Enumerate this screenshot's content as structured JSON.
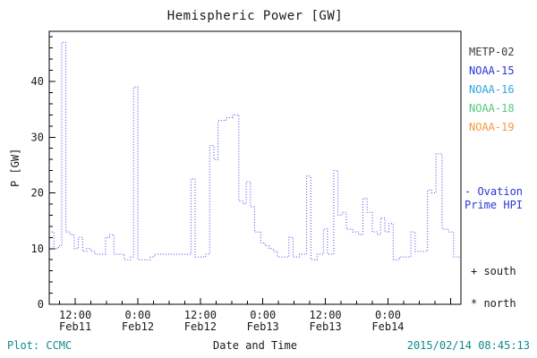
{
  "title": "Hemispheric Power [GW]",
  "legend": {
    "satellites": [
      {
        "label": "METP-02",
        "color": "#3a3a3a"
      },
      {
        "label": "NOAA-15",
        "color": "#2a35d8"
      },
      {
        "label": "NOAA-16",
        "color": "#2aa8e0"
      },
      {
        "label": "NOAA-18",
        "color": "#57c87d"
      },
      {
        "label": "NOAA-19",
        "color": "#f59b3c"
      }
    ],
    "ovation_line1": "- Ovation",
    "ovation_line2": "Prime HPI",
    "ovation_color": "#2a35d8",
    "south": "+ south",
    "north": "* north"
  },
  "footer": {
    "plot_credit": "Plot: CCMC",
    "timestamp": "2015/02/14 08:45:13",
    "footer_color": "#0e8a8a"
  },
  "chart_data": {
    "type": "line",
    "subtype": "step-dotted",
    "title": "Hemispheric Power [GW]",
    "xlabel": "Date and Time",
    "ylabel": "P [GW]",
    "legend_position": "right",
    "grid": false,
    "line_color": "#4545e8",
    "ylim": [
      0,
      49
    ],
    "xlim_hours_since_feb11_0000": [
      7,
      86
    ],
    "y_major_ticks": [
      0,
      10,
      20,
      30,
      40
    ],
    "y_minor_step": 2,
    "x_minor_step_hours": 3,
    "x_ticks": [
      {
        "hour": 12,
        "time": "12:00",
        "date": "Feb11"
      },
      {
        "hour": 24,
        "time": "0:00",
        "date": "Feb12"
      },
      {
        "hour": 36,
        "time": "12:00",
        "date": "Feb12"
      },
      {
        "hour": 48,
        "time": "0:00",
        "date": "Feb13"
      },
      {
        "hour": 60,
        "time": "12:00",
        "date": "Feb13"
      },
      {
        "hour": 72,
        "time": "0:00",
        "date": "Feb14"
      },
      {
        "hour": 84,
        "time": "",
        "date": ""
      }
    ],
    "series": [
      {
        "name": "Ovation Prime HPI",
        "hours": [
          7.0,
          7.9,
          8.8,
          9.4,
          10.2,
          11.0,
          11.8,
          12.6,
          13.4,
          14.2,
          15.0,
          15.8,
          17.0,
          17.8,
          18.6,
          19.4,
          20.6,
          21.4,
          22.6,
          23.2,
          24.0,
          25.2,
          26.4,
          27.2,
          33.6,
          34.2,
          35.0,
          36.2,
          37.0,
          37.8,
          38.6,
          39.4,
          41.0,
          42.2,
          43.4,
          44.2,
          44.8,
          45.6,
          46.4,
          47.6,
          48.4,
          49.2,
          50.0,
          50.8,
          52.4,
          53.0,
          53.8,
          55.0,
          56.4,
          57.2,
          58.4,
          59.6,
          60.4,
          61.6,
          62.4,
          63.2,
          64.0,
          65.2,
          66.4,
          67.2,
          68.0,
          69.0,
          70.0,
          70.6,
          71.4,
          72.2,
          73.0,
          74.2,
          75.8,
          76.4,
          77.2,
          78.4,
          79.6,
          80.4,
          81.2,
          82.4,
          83.6,
          84.6,
          86.0
        ],
        "values": [
          13,
          10,
          10.5,
          47,
          13,
          12.5,
          10,
          12,
          9.5,
          10,
          9.5,
          9,
          9,
          12,
          12.5,
          9,
          9,
          8,
          8.5,
          39,
          8,
          8,
          8.5,
          9,
          9,
          22.5,
          8.5,
          8.5,
          9,
          28.5,
          26,
          33,
          33.5,
          34,
          18.5,
          18,
          22,
          17.5,
          13,
          11,
          10.5,
          10,
          9.5,
          8.5,
          8.5,
          12,
          8.5,
          9,
          23,
          8,
          9,
          13.5,
          9,
          24,
          16,
          16.5,
          13.5,
          13,
          12.5,
          19,
          16.5,
          13,
          12.5,
          15.5,
          13,
          14.5,
          8,
          8.5,
          8.5,
          13,
          9.5,
          9.5,
          20.5,
          20,
          27,
          13.5,
          13,
          8.5,
          8.5
        ]
      }
    ]
  }
}
